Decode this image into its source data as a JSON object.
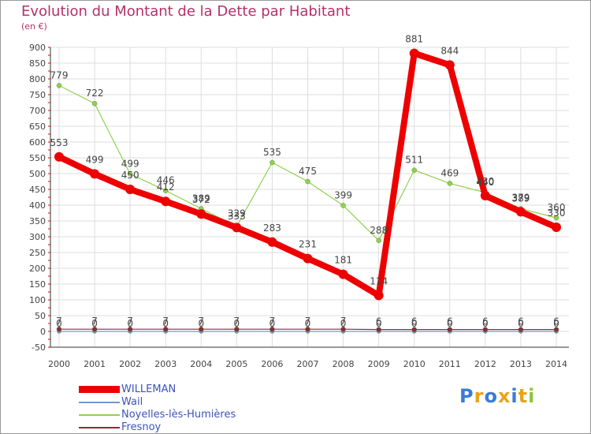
{
  "chart_data": {
    "type": "line",
    "title": "Evolution du Montant de la Dette par Habitant",
    "subtitle": "(en €)",
    "x": [
      "2000",
      "2001",
      "2002",
      "2003",
      "2004",
      "2005",
      "2006",
      "2007",
      "2008",
      "2009",
      "2010",
      "2011",
      "2012",
      "2013",
      "2014"
    ],
    "ylim": [
      -50,
      900
    ],
    "ytick_step": 50,
    "series": [
      {
        "name": "WILLEMAN",
        "color": "#ee0000",
        "values": [
          553,
          499,
          450,
          412,
          372,
          329,
          283,
          231,
          181,
          114,
          881,
          844,
          430,
          379,
          330
        ]
      },
      {
        "name": "Wail",
        "color": "#6b9bc8",
        "values": [
          0,
          0,
          0,
          0,
          0,
          0,
          0,
          0,
          0,
          0,
          0,
          0,
          0,
          0,
          0
        ]
      },
      {
        "name": "Noyelles-lès-Humières",
        "color": "#8fd14f",
        "values": [
          779,
          722,
          499,
          446,
          389,
          333,
          535,
          475,
          399,
          288,
          511,
          469,
          440,
          389,
          360
        ]
      },
      {
        "name": "Fresnoy",
        "color": "#8b2d35",
        "values": [
          7,
          7,
          7,
          7,
          7,
          7,
          7,
          7,
          7,
          6,
          6,
          6,
          6,
          6,
          6
        ]
      }
    ]
  },
  "logo": {
    "text": "Proxiti",
    "letters": [
      "P",
      "r",
      "o",
      "x",
      "i",
      "t",
      "i"
    ],
    "colors": [
      "#3a7bd5",
      "#e8a317",
      "#3a7bd5",
      "#e8a317",
      "#3a7bd5",
      "#e8a317",
      "#8cc63f"
    ]
  }
}
